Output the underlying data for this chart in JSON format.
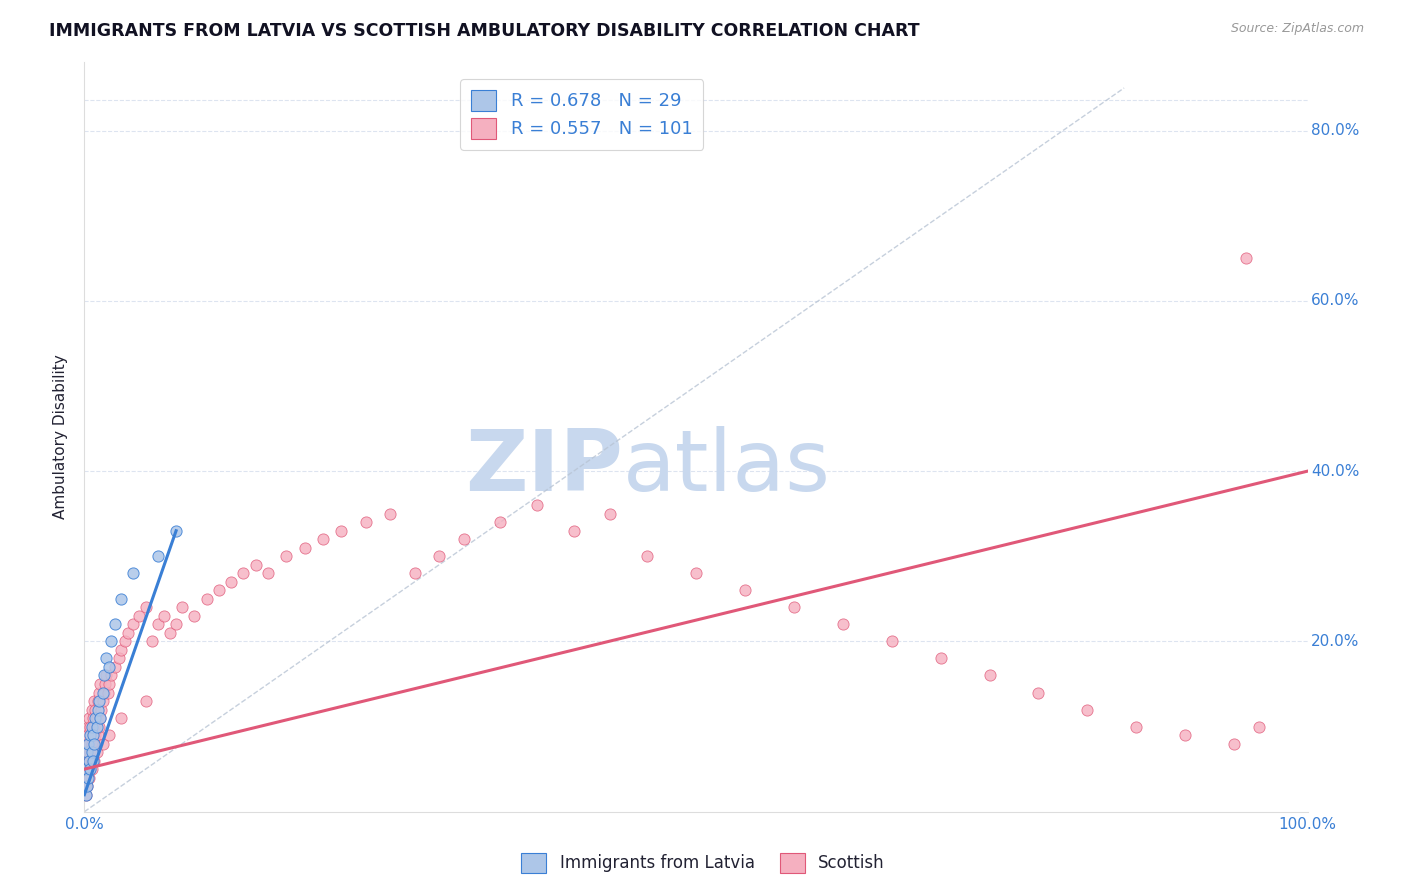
{
  "title": "IMMIGRANTS FROM LATVIA VS SCOTTISH AMBULATORY DISABILITY CORRELATION CHART",
  "source": "Source: ZipAtlas.com",
  "ylabel": "Ambulatory Disability",
  "xlim": [
    0.0,
    1.0
  ],
  "ylim": [
    0.0,
    0.88
  ],
  "y_tick_vals": [
    0.2,
    0.4,
    0.6,
    0.8
  ],
  "y_tick_labels": [
    "20.0%",
    "40.0%",
    "60.0%",
    "80.0%"
  ],
  "legend_blue_label": "Immigrants from Latvia",
  "legend_pink_label": "Scottish",
  "R_blue": 0.678,
  "N_blue": 29,
  "R_pink": 0.557,
  "N_pink": 101,
  "blue_scatter_x": [
    0.001,
    0.001,
    0.002,
    0.002,
    0.003,
    0.003,
    0.004,
    0.005,
    0.005,
    0.006,
    0.006,
    0.007,
    0.007,
    0.008,
    0.009,
    0.01,
    0.011,
    0.012,
    0.013,
    0.015,
    0.016,
    0.018,
    0.02,
    0.022,
    0.025,
    0.03,
    0.04,
    0.06,
    0.075
  ],
  "blue_scatter_y": [
    0.02,
    0.05,
    0.03,
    0.07,
    0.04,
    0.08,
    0.06,
    0.09,
    0.05,
    0.07,
    0.1,
    0.06,
    0.09,
    0.08,
    0.11,
    0.1,
    0.12,
    0.13,
    0.11,
    0.14,
    0.16,
    0.18,
    0.17,
    0.2,
    0.22,
    0.25,
    0.28,
    0.3,
    0.33
  ],
  "pink_scatter_x": [
    0.001,
    0.001,
    0.001,
    0.002,
    0.002,
    0.002,
    0.003,
    0.003,
    0.003,
    0.004,
    0.004,
    0.004,
    0.005,
    0.005,
    0.005,
    0.006,
    0.006,
    0.006,
    0.007,
    0.007,
    0.007,
    0.008,
    0.008,
    0.008,
    0.009,
    0.009,
    0.01,
    0.01,
    0.011,
    0.011,
    0.012,
    0.012,
    0.013,
    0.013,
    0.014,
    0.015,
    0.016,
    0.017,
    0.018,
    0.019,
    0.02,
    0.022,
    0.025,
    0.028,
    0.03,
    0.033,
    0.036,
    0.04,
    0.045,
    0.05,
    0.055,
    0.06,
    0.065,
    0.07,
    0.075,
    0.08,
    0.09,
    0.1,
    0.11,
    0.12,
    0.13,
    0.14,
    0.15,
    0.165,
    0.18,
    0.195,
    0.21,
    0.23,
    0.25,
    0.27,
    0.29,
    0.31,
    0.34,
    0.37,
    0.4,
    0.43,
    0.46,
    0.5,
    0.54,
    0.58,
    0.62,
    0.66,
    0.7,
    0.74,
    0.78,
    0.82,
    0.86,
    0.9,
    0.94,
    0.96,
    0.001,
    0.002,
    0.004,
    0.006,
    0.008,
    0.01,
    0.015,
    0.02,
    0.03,
    0.05,
    0.95
  ],
  "pink_scatter_y": [
    0.03,
    0.05,
    0.08,
    0.04,
    0.06,
    0.09,
    0.05,
    0.07,
    0.1,
    0.06,
    0.08,
    0.11,
    0.05,
    0.07,
    0.1,
    0.06,
    0.08,
    0.12,
    0.07,
    0.09,
    0.11,
    0.08,
    0.1,
    0.13,
    0.09,
    0.12,
    0.08,
    0.11,
    0.09,
    0.13,
    0.1,
    0.14,
    0.11,
    0.15,
    0.12,
    0.13,
    0.14,
    0.15,
    0.16,
    0.14,
    0.15,
    0.16,
    0.17,
    0.18,
    0.19,
    0.2,
    0.21,
    0.22,
    0.23,
    0.24,
    0.2,
    0.22,
    0.23,
    0.21,
    0.22,
    0.24,
    0.23,
    0.25,
    0.26,
    0.27,
    0.28,
    0.29,
    0.28,
    0.3,
    0.31,
    0.32,
    0.33,
    0.34,
    0.35,
    0.28,
    0.3,
    0.32,
    0.34,
    0.36,
    0.33,
    0.35,
    0.3,
    0.28,
    0.26,
    0.24,
    0.22,
    0.2,
    0.18,
    0.16,
    0.14,
    0.12,
    0.1,
    0.09,
    0.08,
    0.1,
    0.02,
    0.03,
    0.04,
    0.05,
    0.06,
    0.07,
    0.08,
    0.09,
    0.11,
    0.13,
    0.65
  ],
  "blue_color": "#adc6e8",
  "pink_color": "#f5b0c0",
  "blue_line_color": "#3a7fd5",
  "pink_line_color": "#e05878",
  "dashed_line_color": "#b8c4d4",
  "watermark_color": "#c8d8ee",
  "title_color": "#111122",
  "axis_label_color": "#222233",
  "tick_label_color": "#3a7fd5",
  "background_color": "#ffffff",
  "grid_color": "#dde4f0",
  "blue_line_x_start": 0.0,
  "blue_line_x_end": 0.075,
  "blue_line_y_start": 0.02,
  "blue_line_y_end": 0.33,
  "pink_line_x_start": 0.0,
  "pink_line_x_end": 1.0,
  "pink_line_y_start": 0.05,
  "pink_line_y_end": 0.4
}
